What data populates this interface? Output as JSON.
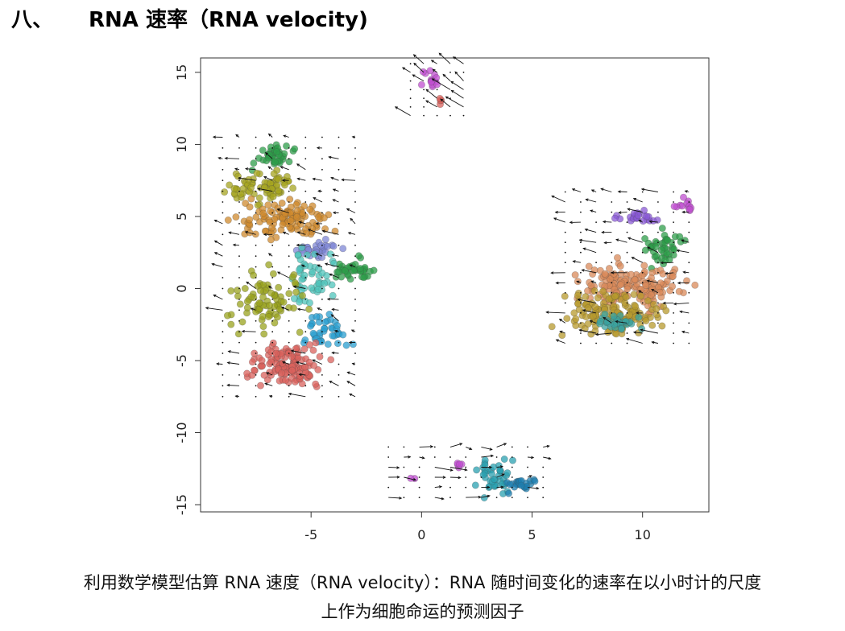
{
  "heading": {
    "number": "八、",
    "title": "RNA 速率（RNA velocity)"
  },
  "caption": {
    "line1": "利用数学模型估算 RNA 速度（RNA velocity）：RNA 随时间变化的速率在以小时计的尺度",
    "line2": "上作为细胞命运的预测因子"
  },
  "chart_data": {
    "type": "scatter",
    "title": "",
    "xlabel": "",
    "ylabel": "",
    "xlim": [
      -10,
      13
    ],
    "ylim": [
      -15.5,
      16
    ],
    "x_ticks": [
      -5,
      0,
      5,
      10
    ],
    "y_ticks": [
      -15,
      -10,
      -5,
      0,
      5,
      10,
      15
    ],
    "grid": false,
    "legend": "none",
    "clusters": [
      {
        "color": "#2e9e4a",
        "cx": -6.7,
        "cy": 9.2,
        "rx": 0.7,
        "ry": 0.7,
        "n": 40
      },
      {
        "color": "#a6a420",
        "cx": -7.3,
        "cy": 7.0,
        "rx": 1.3,
        "ry": 0.9,
        "n": 70
      },
      {
        "color": "#cf8a2e",
        "cx": -6.2,
        "cy": 4.8,
        "rx": 1.8,
        "ry": 1.1,
        "n": 110
      },
      {
        "color": "#7f87d6",
        "cx": -4.6,
        "cy": 2.7,
        "rx": 0.8,
        "ry": 0.5,
        "n": 30
      },
      {
        "color": "#2e9e4a",
        "cx": -3.2,
        "cy": 1.2,
        "rx": 0.8,
        "ry": 0.8,
        "n": 40
      },
      {
        "color": "#4fc4bb",
        "cx": -5.0,
        "cy": 0.8,
        "rx": 1.0,
        "ry": 1.6,
        "n": 50
      },
      {
        "color": "#9aa31e",
        "cx": -7.0,
        "cy": -1.0,
        "rx": 1.5,
        "ry": 1.9,
        "n": 80
      },
      {
        "color": "#2a9fd0",
        "cx": -4.3,
        "cy": -3.0,
        "rx": 0.8,
        "ry": 1.2,
        "n": 40
      },
      {
        "color": "#d9615c",
        "cx": -6.1,
        "cy": -5.3,
        "rx": 1.4,
        "ry": 1.2,
        "n": 130
      },
      {
        "color": "#c04fd0",
        "cx": 0.4,
        "cy": 14.6,
        "rx": 0.4,
        "ry": 0.6,
        "n": 14
      },
      {
        "color": "#d9615c",
        "cx": 0.8,
        "cy": 12.9,
        "rx": 0.15,
        "ry": 0.2,
        "n": 4
      },
      {
        "color": "#8a5ad6",
        "cx": 9.8,
        "cy": 5.0,
        "rx": 1.2,
        "ry": 0.4,
        "n": 24
      },
      {
        "color": "#c04fd0",
        "cx": 11.9,
        "cy": 5.8,
        "rx": 0.4,
        "ry": 0.5,
        "n": 12
      },
      {
        "color": "#2e9e4a",
        "cx": 11.0,
        "cy": 2.8,
        "rx": 0.8,
        "ry": 1.2,
        "n": 44
      },
      {
        "color": "#d98a5a",
        "cx": 9.4,
        "cy": 0.2,
        "rx": 2.0,
        "ry": 1.3,
        "n": 160
      },
      {
        "color": "#b79a2e",
        "cx": 8.6,
        "cy": -1.8,
        "rx": 1.9,
        "ry": 1.3,
        "n": 150
      },
      {
        "color": "#3aa3a0",
        "cx": 9.0,
        "cy": -2.4,
        "rx": 1.0,
        "ry": 0.5,
        "n": 30
      },
      {
        "color": "#2aa0b0",
        "cx": 3.4,
        "cy": -13.0,
        "rx": 0.8,
        "ry": 1.1,
        "n": 40
      },
      {
        "color": "#1f7fb0",
        "cx": 4.4,
        "cy": -13.6,
        "rx": 0.6,
        "ry": 0.5,
        "n": 24
      },
      {
        "color": "#c04fd0",
        "cx": 1.7,
        "cy": -12.2,
        "rx": 0.12,
        "ry": 0.3,
        "n": 5
      },
      {
        "color": "#c04fd0",
        "cx": -0.4,
        "cy": -13.2,
        "rx": 0.12,
        "ry": 0.12,
        "n": 2
      }
    ],
    "velocity_grids": [
      {
        "x0": -9,
        "x1": -2.5,
        "y0": -7.5,
        "y1": 11,
        "step": 0.75,
        "dx": -0.3,
        "dy": 0.15
      },
      {
        "x0": -0.5,
        "x1": 2,
        "y0": 12,
        "y1": 16,
        "step": 0.6,
        "dx": -0.3,
        "dy": 0.35
      },
      {
        "x0": 6.5,
        "x1": 12.5,
        "y0": -3.8,
        "y1": 7,
        "step": 0.7,
        "dx": -0.35,
        "dy": 0.1
      },
      {
        "x0": -1.5,
        "x1": 6,
        "y0": -14.5,
        "y1": -10.5,
        "step": 0.7,
        "dx": 0.35,
        "dy": 0.0
      }
    ]
  }
}
